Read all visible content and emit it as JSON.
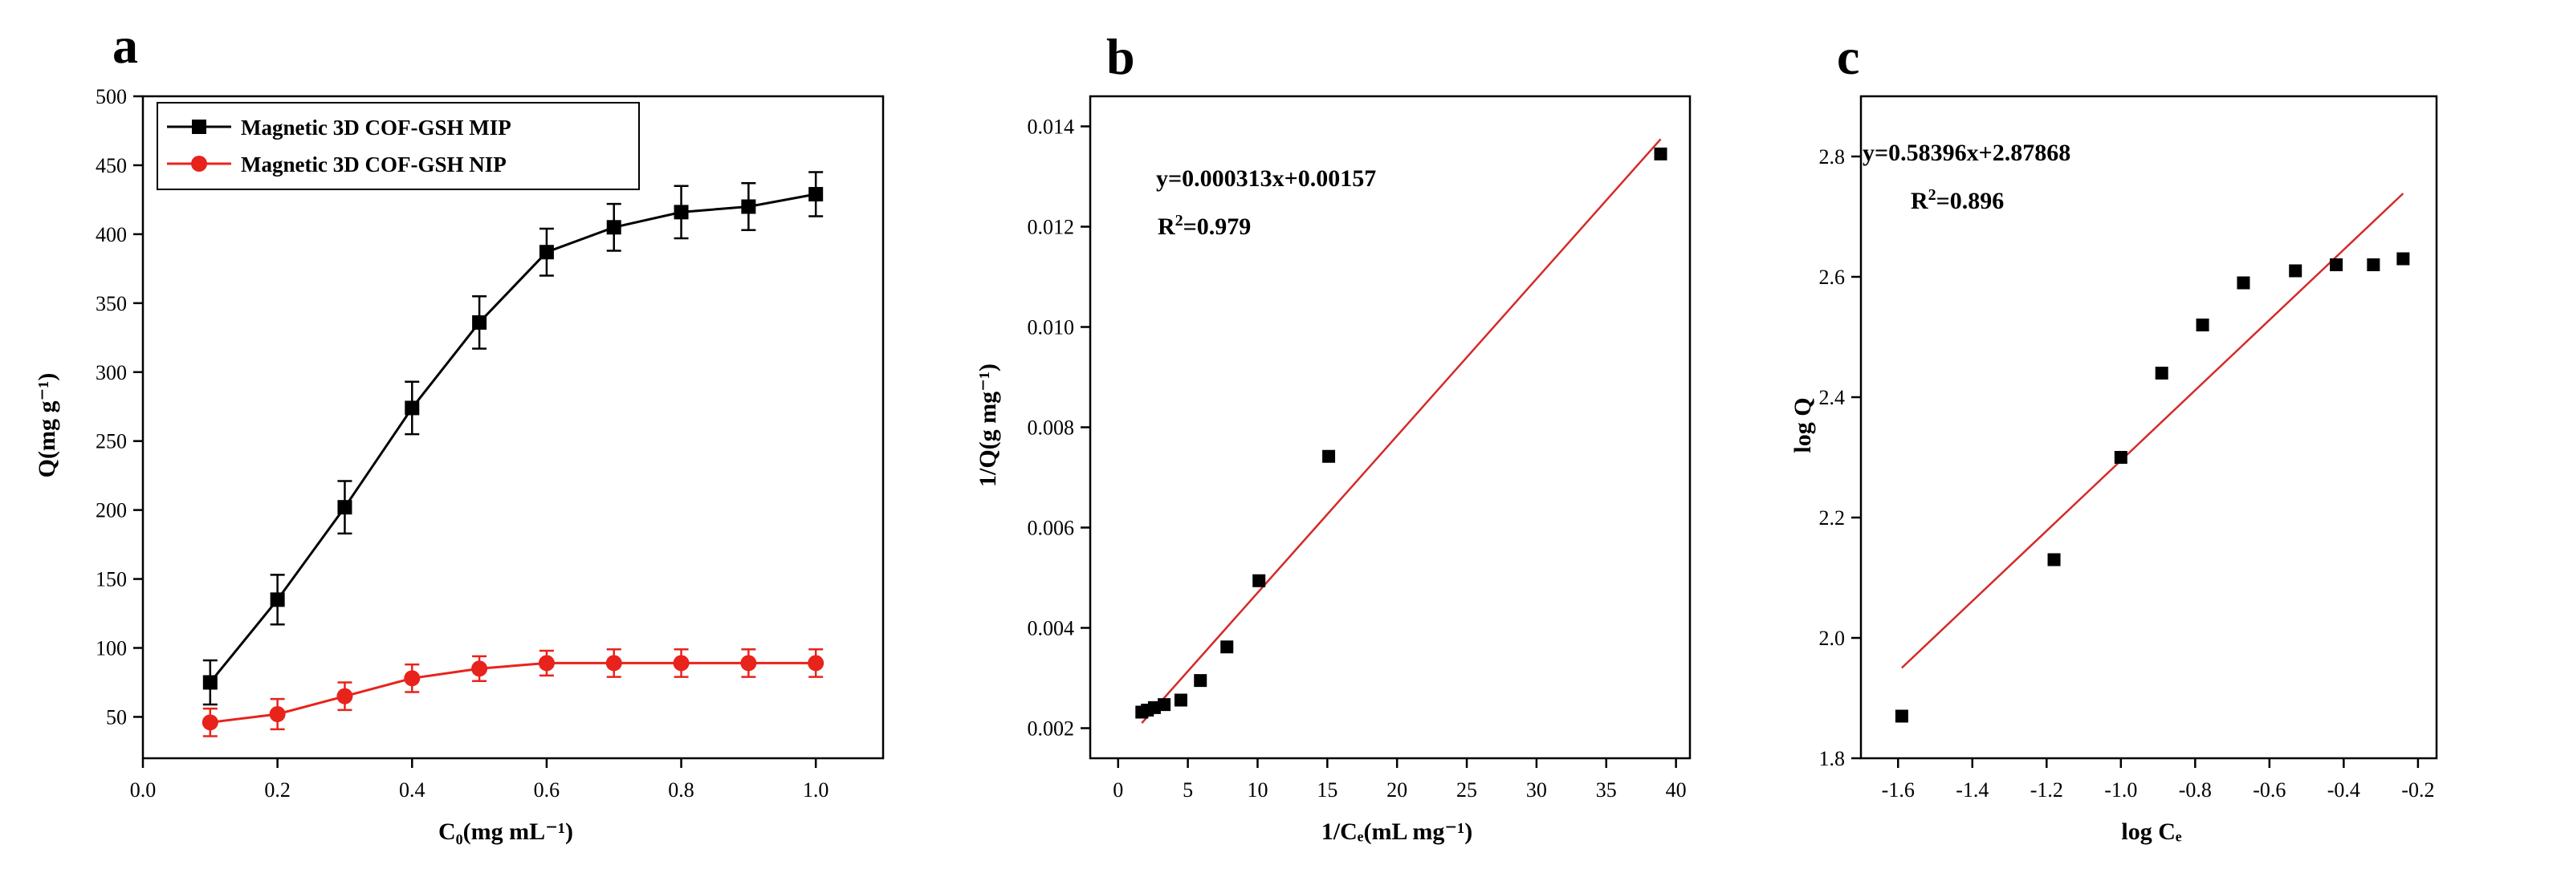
{
  "chart_data": [
    {
      "panel": "a",
      "type": "line",
      "xlabel": "C₀(mg mL⁻¹)",
      "ylabel": "Q(mg g⁻¹)",
      "xlim": [
        0.0,
        1.1
      ],
      "ylim": [
        20,
        500
      ],
      "xticks": [
        0.0,
        0.2,
        0.4,
        0.6,
        0.8,
        1.0
      ],
      "xtick_labels": [
        "0.0",
        "0.2",
        "0.4",
        "0.6",
        "0.8",
        "1.0"
      ],
      "yticks": [
        50,
        100,
        150,
        200,
        250,
        300,
        350,
        400,
        450,
        500
      ],
      "ytick_labels": [
        "50",
        "100",
        "150",
        "200",
        "250",
        "300",
        "350",
        "400",
        "450",
        "500"
      ],
      "legend_position": "top-left",
      "series": [
        {
          "name": "Magnetic 3D COF-GSH MIP",
          "color": "#000000",
          "marker": "square",
          "x": [
            0.1,
            0.2,
            0.3,
            0.4,
            0.5,
            0.6,
            0.7,
            0.8,
            0.9,
            1.0
          ],
          "y": [
            75,
            135,
            202,
            274,
            336,
            387,
            405,
            416,
            420,
            429
          ],
          "err": [
            16,
            18,
            19,
            19,
            19,
            17,
            17,
            19,
            17,
            16
          ]
        },
        {
          "name": "Magnetic 3D COF-GSH NIP",
          "color": "#e8231c",
          "marker": "circle",
          "x": [
            0.1,
            0.2,
            0.3,
            0.4,
            0.5,
            0.6,
            0.7,
            0.8,
            0.9,
            1.0
          ],
          "y": [
            46,
            52,
            65,
            78,
            85,
            89,
            89,
            89,
            89,
            89
          ],
          "err": [
            10,
            11,
            10,
            10,
            9,
            9,
            10,
            10,
            10,
            10
          ]
        }
      ]
    },
    {
      "panel": "b",
      "type": "scatter",
      "xlabel": "1/Cₑ(mL mg⁻¹)",
      "ylabel": "1/Q(g mg⁻¹)",
      "xlim": [
        -2,
        41
      ],
      "ylim": [
        0.0014,
        0.0146
      ],
      "xticks": [
        0,
        5,
        10,
        15,
        20,
        25,
        30,
        35,
        40
      ],
      "xtick_labels": [
        "0",
        "5",
        "10",
        "15",
        "20",
        "25",
        "30",
        "35",
        "40"
      ],
      "yticks": [
        0.002,
        0.004,
        0.006,
        0.008,
        0.01,
        0.012,
        0.014
      ],
      "ytick_labels": [
        "0.002",
        "0.004",
        "0.006",
        "0.008",
        "0.010",
        "0.012",
        "0.014"
      ],
      "points": {
        "x": [
          1.7,
          2.1,
          2.6,
          3.3,
          4.5,
          5.9,
          7.8,
          10.1,
          15.1,
          38.9
        ],
        "y": [
          0.00232,
          0.00236,
          0.00241,
          0.00247,
          0.00256,
          0.00295,
          0.00362,
          0.00494,
          0.00742,
          0.01345
        ]
      },
      "fit": {
        "slope": 0.000313,
        "intercept": 0.00157,
        "x_range": [
          1.7,
          38.9
        ],
        "color": "#d42b2b"
      },
      "equation": "y=0.000313x+0.00157",
      "r2_label": "R",
      "r2_sup": "2",
      "r2_value": "=0.979"
    },
    {
      "panel": "c",
      "type": "scatter",
      "xlabel": "log Cₑ",
      "ylabel": "log Q",
      "xlim": [
        -1.7,
        -0.15
      ],
      "ylim": [
        1.8,
        2.9
      ],
      "xticks": [
        -1.6,
        -1.4,
        -1.2,
        -1.0,
        -0.8,
        -0.6,
        -0.4,
        -0.2
      ],
      "xtick_labels": [
        "-1.6",
        "-1.4",
        "-1.2",
        "-1.0",
        "-0.8",
        "-0.6",
        "-0.4",
        "-0.2"
      ],
      "yticks": [
        1.8,
        2.0,
        2.2,
        2.4,
        2.6,
        2.8
      ],
      "ytick_labels": [
        "1.8",
        "2.0",
        "2.2",
        "2.4",
        "2.6",
        "2.8"
      ],
      "points": {
        "x": [
          -1.59,
          -1.18,
          -1.0,
          -0.89,
          -0.78,
          -0.67,
          -0.53,
          -0.42,
          -0.32,
          -0.24
        ],
        "y": [
          1.87,
          2.13,
          2.3,
          2.44,
          2.52,
          2.59,
          2.61,
          2.62,
          2.62,
          2.63
        ]
      },
      "fit": {
        "slope": 0.58396,
        "intercept": 2.87868,
        "x_range": [
          -1.59,
          -0.24
        ],
        "color": "#d42b2b"
      },
      "equation": "y=0.58396x+2.87868",
      "r2_label": "R",
      "r2_sup": "2",
      "r2_value": "=0.896"
    }
  ],
  "panel_letters": [
    "a",
    "b",
    "c"
  ]
}
